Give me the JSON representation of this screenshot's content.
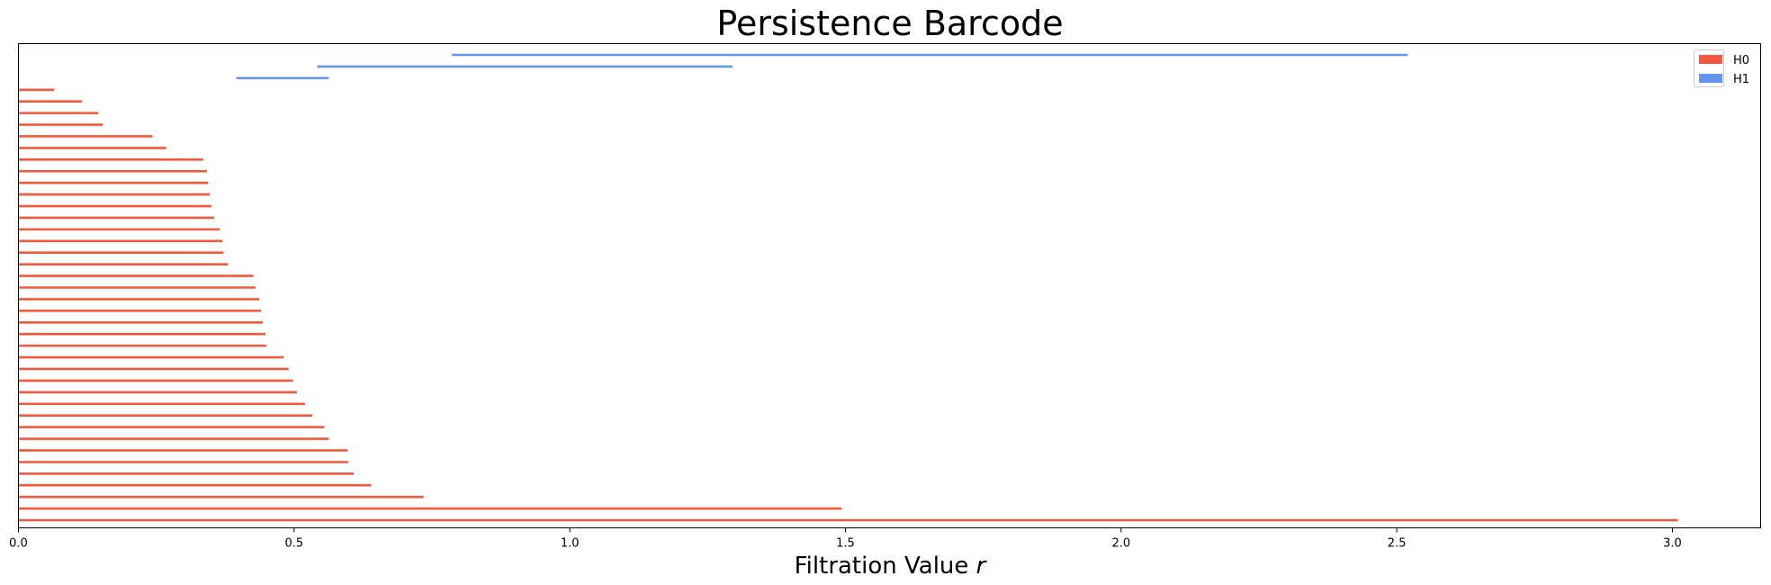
{
  "chart_data": {
    "type": "barcode",
    "title": "Persistence Barcode",
    "xlabel_prefix": "Filtration Value ",
    "xlabel_var": "r",
    "ylabel": "",
    "xlim": [
      0,
      3.16
    ],
    "xticks": [
      {
        "value": 0.0,
        "label": "0.0"
      },
      {
        "value": 0.5,
        "label": "0.5"
      },
      {
        "value": 1.0,
        "label": "1.0"
      },
      {
        "value": 1.5,
        "label": "1.5"
      },
      {
        "value": 2.0,
        "label": "2.0"
      },
      {
        "value": 2.5,
        "label": "2.5"
      },
      {
        "value": 3.0,
        "label": "3.0"
      }
    ],
    "grid": false,
    "legend_position": "top-right",
    "series": [
      {
        "name": "H0",
        "color": "#f4593c",
        "intervals": [
          [
            0,
            0.065
          ],
          [
            0,
            0.115
          ],
          [
            0,
            0.145
          ],
          [
            0,
            0.153
          ],
          [
            0,
            0.243
          ],
          [
            0,
            0.268
          ],
          [
            0,
            0.335
          ],
          [
            0,
            0.342
          ],
          [
            0,
            0.344
          ],
          [
            0,
            0.347
          ],
          [
            0,
            0.35
          ],
          [
            0,
            0.355
          ],
          [
            0,
            0.365
          ],
          [
            0,
            0.37
          ],
          [
            0,
            0.372
          ],
          [
            0,
            0.38
          ],
          [
            0,
            0.426
          ],
          [
            0,
            0.43
          ],
          [
            0,
            0.437
          ],
          [
            0,
            0.44
          ],
          [
            0,
            0.443
          ],
          [
            0,
            0.448
          ],
          [
            0,
            0.45
          ],
          [
            0,
            0.481
          ],
          [
            0,
            0.49
          ],
          [
            0,
            0.498
          ],
          [
            0,
            0.505
          ],
          [
            0,
            0.52
          ],
          [
            0,
            0.533
          ],
          [
            0,
            0.555
          ],
          [
            0,
            0.563
          ],
          [
            0,
            0.597
          ],
          [
            0,
            0.598
          ],
          [
            0,
            0.608
          ],
          [
            0,
            0.64
          ],
          [
            0,
            0.735
          ],
          [
            0,
            1.493
          ],
          [
            0,
            3.01
          ]
        ]
      },
      {
        "name": "H1",
        "color": "#6495ed",
        "intervals": [
          [
            0.786,
            2.52
          ],
          [
            0.542,
            1.295
          ],
          [
            0.395,
            0.563
          ]
        ]
      }
    ]
  }
}
